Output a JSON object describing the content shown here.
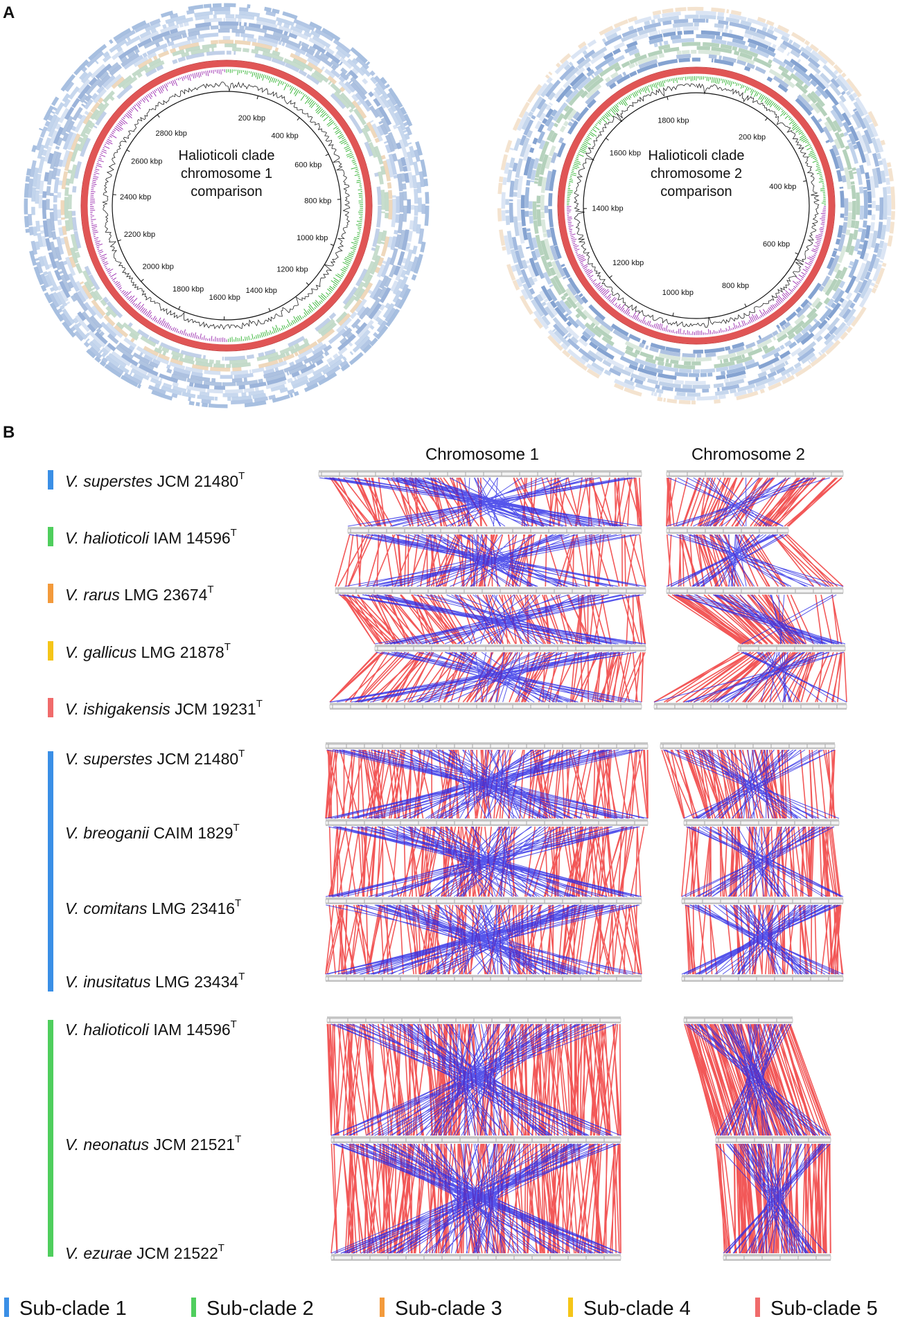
{
  "panel_a": {
    "label": "A",
    "circles": [
      {
        "title_lines": [
          "Halioticoli clade",
          "chromosome 1",
          "comparison"
        ],
        "ticks": [
          "200 kbp",
          "400 kbp",
          "600 kbp",
          "800 kbp",
          "1000 kbp",
          "1200 kbp",
          "1400 kbp",
          "1600 kbp",
          "1800 kbp",
          "2000 kbp",
          "2200 kbp",
          "2400 kbp",
          "2600 kbp",
          "2800 kbp"
        ]
      },
      {
        "title_lines": [
          "Halioticoli clade",
          "chromosome 2",
          "comparison"
        ],
        "ticks": [
          "200 kbp",
          "400 kbp",
          "600 kbp",
          "800 kbp",
          "1000 kbp",
          "1200 kbp",
          "1400 kbp",
          "1600 kbp",
          "1800 kbp"
        ]
      }
    ]
  },
  "panel_b": {
    "label": "B",
    "columns": [
      "Chromosome 1",
      "Chromosome 2"
    ],
    "groups": [
      {
        "rows": [
          {
            "species": "V. superstes",
            "strain": "JCM 21480",
            "sup": "T",
            "color": "#3a8fe6"
          },
          {
            "species": "V. halioticoli",
            "strain": "IAM 14596",
            "sup": "T",
            "color": "#4fce5d"
          },
          {
            "species": "V. rarus",
            "strain": "LMG 23674",
            "sup": "T",
            "color": "#f39a3b"
          },
          {
            "species": "V. gallicus",
            "strain": "LMG 21878",
            "sup": "T",
            "color": "#f5c518"
          },
          {
            "species": "V. ishigakensis",
            "strain": "JCM 19231",
            "sup": "T",
            "color": "#f06b6b"
          }
        ]
      },
      {
        "color": "#3a8fe6",
        "rows": [
          {
            "species": "V. superstes",
            "strain": "JCM 21480",
            "sup": "T"
          },
          {
            "species": "V. breoganii",
            "strain": "CAIM 1829",
            "sup": "T"
          },
          {
            "species": "V. comitans",
            "strain": "LMG 23416",
            "sup": "T"
          },
          {
            "species": "V. inusitatus",
            "strain": "LMG 23434",
            "sup": "T"
          }
        ]
      },
      {
        "color": "#4fce5d",
        "rows": [
          {
            "species": "V. halioticoli",
            "strain": "IAM 14596",
            "sup": "T"
          },
          {
            "species": "V. neonatus",
            "strain": "JCM 21521",
            "sup": "T"
          },
          {
            "species": "V. ezurae",
            "strain": "JCM 21522",
            "sup": "T"
          }
        ]
      }
    ]
  },
  "legend": [
    {
      "label": "Sub-clade 1",
      "color": "#3a8fe6"
    },
    {
      "label": "Sub-clade 2",
      "color": "#4fce5d"
    },
    {
      "label": "Sub-clade 3",
      "color": "#f39a3b"
    },
    {
      "label": "Sub-clade 4",
      "color": "#f5c518"
    },
    {
      "label": "Sub-clade 5",
      "color": "#f06b6b"
    }
  ]
}
